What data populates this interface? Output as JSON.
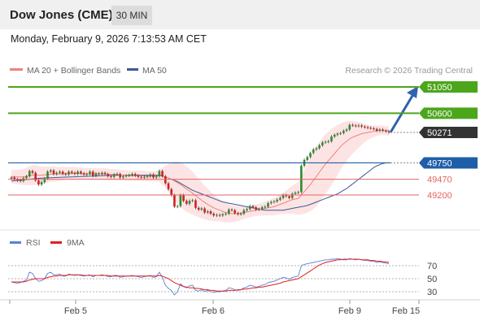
{
  "header": {
    "title": "Dow Jones (CME)",
    "timeframe": "30 MIN"
  },
  "timestamp": "Monday, February 9, 2026 7:13:53 AM CET",
  "legend": {
    "ma20": "MA 20 + Bollinger Bands",
    "ma50": "MA 50",
    "source": "Research © 2026 Trading Central"
  },
  "colors": {
    "resistance": "#4ca61c",
    "support": "#e66464",
    "pivot": "#1f5ea8",
    "current": "#333333",
    "candle_up": "#2e8b2e",
    "candle_down": "#cc2222",
    "ma20": "#f08080",
    "ma50": "#3a5a95",
    "band_fill": "#fde4e4",
    "rsi": "#5b7fd6",
    "rsi_ma": "#e02020",
    "arrow": "#2f62b0"
  },
  "chart_data": [
    {
      "type": "candlestick",
      "x_ticks": [
        "Feb 5",
        "Feb 6",
        "Feb 9",
        "Feb 15"
      ],
      "levels": [
        {
          "value": 51050,
          "label": "51050",
          "kind": "resistance"
        },
        {
          "value": 50600,
          "label": "50600",
          "kind": "resistance"
        },
        {
          "value": 50271,
          "label": "50271",
          "kind": "current"
        },
        {
          "value": 49750,
          "label": "49750",
          "kind": "pivot"
        },
        {
          "value": 49470,
          "label": "49470",
          "kind": "support"
        },
        {
          "value": 49200,
          "label": "49200",
          "kind": "support"
        }
      ],
      "ylim": [
        48700,
        51200
      ],
      "close": [
        49500,
        49470,
        49450,
        49440,
        49490,
        49520,
        49610,
        49580,
        49450,
        49380,
        49420,
        49480,
        49600,
        49620,
        49560,
        49580,
        49600,
        49560,
        49550,
        49600,
        49580,
        49560,
        49600,
        49570,
        49550,
        49560,
        49600,
        49530,
        49570,
        49560,
        49580,
        49560,
        49520,
        49510,
        49550,
        49560,
        49500,
        49520,
        49530,
        49540,
        49560,
        49530,
        49510,
        49500,
        49510,
        49520,
        49550,
        49500,
        49520,
        49610,
        49520,
        49400,
        49300,
        49200,
        49000,
        49010,
        49200,
        49100,
        49050,
        49100,
        49110,
        48980,
        48950,
        48970,
        48900,
        48920,
        48880,
        48850,
        48860,
        48850,
        48870,
        48880,
        48950,
        48940,
        48890,
        48870,
        48880,
        48940,
        48960,
        49010,
        48990,
        48950,
        48960,
        48990,
        49000,
        49060,
        49080,
        49090,
        49120,
        49150,
        49200,
        49180,
        49150,
        49220,
        49240,
        49250,
        49700,
        49800,
        49850,
        49920,
        49980,
        50000,
        50050,
        50100,
        50110,
        50120,
        50200,
        50230,
        50250,
        50260,
        50300,
        50320,
        50400,
        50390,
        50380,
        50390,
        50370,
        50360,
        50350,
        50340,
        50330,
        50300,
        50320,
        50300,
        50290,
        50271
      ],
      "ma20": [
        49510,
        49510,
        49510,
        49510,
        49510,
        49520,
        49530,
        49540,
        49540,
        49540,
        49540,
        49545,
        49550,
        49555,
        49560,
        49560,
        49560,
        49565,
        49570,
        49570,
        49570,
        49570,
        49570,
        49570,
        49565,
        49560,
        49560,
        49560,
        49560,
        49560,
        49560,
        49560,
        49550,
        49550,
        49550,
        49550,
        49540,
        49540,
        49535,
        49530,
        49530,
        49530,
        49530,
        49530,
        49525,
        49520,
        49520,
        49520,
        49520,
        49530,
        49520,
        49510,
        49490,
        49470,
        49440,
        49410,
        49380,
        49340,
        49300,
        49270,
        49230,
        49190,
        49150,
        49110,
        49070,
        49040,
        49010,
        48980,
        48960,
        48940,
        48920,
        48900,
        48890,
        48880,
        48880,
        48880,
        48890,
        48900,
        48910,
        48920,
        48930,
        48940,
        48950,
        48960,
        48970,
        48980,
        48990,
        49000,
        49020,
        49040,
        49060,
        49080,
        49100,
        49120,
        49130,
        49140,
        49200,
        49260,
        49320,
        49380,
        49450,
        49520,
        49590,
        49660,
        49730,
        49790,
        49850,
        49910,
        49970,
        50030,
        50080,
        50120,
        50160,
        50190,
        50210,
        50230,
        50250,
        50260,
        50270,
        50280,
        50290,
        50300,
        50310,
        50310,
        50300,
        50300
      ],
      "bb_half_width": [
        120,
        120,
        125,
        130,
        140,
        150,
        160,
        170,
        170,
        160,
        150,
        140,
        135,
        130,
        130,
        125,
        120,
        115,
        110,
        110,
        110,
        110,
        105,
        100,
        100,
        100,
        100,
        100,
        100,
        100,
        100,
        100,
        100,
        95,
        95,
        90,
        90,
        90,
        90,
        90,
        90,
        90,
        90,
        90,
        90,
        90,
        90,
        90,
        90,
        110,
        150,
        190,
        240,
        290,
        330,
        360,
        380,
        390,
        390,
        380,
        370,
        350,
        330,
        310,
        290,
        270,
        250,
        230,
        210,
        190,
        180,
        170,
        160,
        150,
        140,
        130,
        120,
        110,
        105,
        100,
        100,
        100,
        105,
        110,
        120,
        130,
        140,
        150,
        160,
        170,
        180,
        200,
        220,
        240,
        260,
        280,
        330,
        380,
        420,
        460,
        490,
        510,
        520,
        520,
        510,
        500,
        480,
        460,
        430,
        400,
        370,
        340,
        310,
        280,
        250,
        220,
        190,
        160,
        130,
        110,
        100,
        90,
        85,
        80,
        80,
        80
      ],
      "ma50": [
        49440,
        49445,
        49450,
        49455,
        49460,
        49465,
        49470,
        49475,
        49480,
        49485,
        49490,
        49492,
        49494,
        49496,
        49498,
        49500,
        49502,
        49504,
        49506,
        49508,
        49510,
        49512,
        49514,
        49516,
        49518,
        49520,
        49522,
        49524,
        49526,
        49528,
        49530,
        49532,
        49534,
        49536,
        49538,
        49540,
        49540,
        49540,
        49540,
        49540,
        49540,
        49540,
        49540,
        49540,
        49540,
        49540,
        49540,
        49540,
        49540,
        49540,
        49530,
        49510,
        49490,
        49470,
        49450,
        49430,
        49400,
        49370,
        49340,
        49310,
        49280,
        49260,
        49240,
        49220,
        49200,
        49180,
        49160,
        49140,
        49120,
        49100,
        49080,
        49070,
        49060,
        49050,
        49040,
        49030,
        49020,
        49010,
        49000,
        48990,
        48980,
        48970,
        48960,
        48950,
        48940,
        48940,
        48940,
        48940,
        48940,
        48940,
        48940,
        48950,
        48960,
        48970,
        48980,
        48990,
        49000,
        49010,
        49020,
        49040,
        49060,
        49080,
        49100,
        49120,
        49140,
        49160,
        49180,
        49200,
        49220,
        49250,
        49280,
        49310,
        49350,
        49390,
        49430,
        49470,
        49510,
        49550,
        49590,
        49630,
        49670,
        49700,
        49720,
        49740,
        49750,
        49750
      ]
    },
    {
      "type": "line",
      "series": [
        {
          "name": "RSI",
          "values": [
            45,
            44,
            43,
            44,
            46,
            48,
            60,
            58,
            50,
            46,
            47,
            50,
            58,
            60,
            56,
            56,
            57,
            54,
            54,
            57,
            56,
            55,
            56,
            55,
            54,
            55,
            56,
            53,
            55,
            55,
            56,
            55,
            53,
            53,
            55,
            55,
            52,
            53,
            54,
            54,
            55,
            54,
            53,
            52,
            53,
            54,
            55,
            52,
            53,
            60,
            52,
            40,
            35,
            32,
            25,
            30,
            42,
            38,
            36,
            39,
            40,
            32,
            31,
            33,
            30,
            32,
            30,
            29,
            30,
            30,
            31,
            32,
            36,
            35,
            33,
            32,
            33,
            36,
            37,
            40,
            39,
            37,
            38,
            40,
            41,
            44,
            45,
            46,
            48,
            50,
            52,
            51,
            49,
            52,
            53,
            54,
            70,
            72,
            73,
            74,
            75,
            76,
            77,
            78,
            79,
            79,
            80,
            80,
            81,
            80,
            79,
            79,
            81,
            80,
            79,
            80,
            79,
            78,
            78,
            77,
            77,
            75,
            76,
            75,
            74,
            73
          ]
        },
        {
          "name": "9MA",
          "values": [
            45,
            45,
            45,
            45,
            45,
            46,
            48,
            49,
            50,
            50,
            50,
            50,
            52,
            53,
            54,
            54,
            55,
            55,
            55,
            56,
            56,
            56,
            56,
            56,
            55,
            55,
            55,
            55,
            55,
            55,
            55,
            55,
            55,
            54,
            54,
            54,
            54,
            54,
            54,
            54,
            54,
            54,
            54,
            54,
            54,
            54,
            54,
            54,
            54,
            55,
            54,
            52,
            50,
            47,
            44,
            42,
            40,
            38,
            37,
            36,
            36,
            35,
            35,
            34,
            33,
            33,
            32,
            32,
            31,
            31,
            31,
            31,
            32,
            32,
            32,
            33,
            33,
            34,
            34,
            35,
            36,
            36,
            37,
            37,
            38,
            39,
            40,
            41,
            42,
            43,
            45,
            46,
            47,
            48,
            49,
            50,
            53,
            56,
            59,
            62,
            65,
            68,
            71,
            73,
            75,
            76,
            77,
            78,
            79,
            79,
            80,
            80,
            80,
            80,
            80,
            80,
            79,
            79,
            79,
            78,
            78,
            77,
            77,
            76,
            76,
            75
          ]
        }
      ],
      "y_ticks": [
        "70",
        "50",
        "30"
      ],
      "legend": [
        "RSI",
        "9MA"
      ]
    }
  ]
}
